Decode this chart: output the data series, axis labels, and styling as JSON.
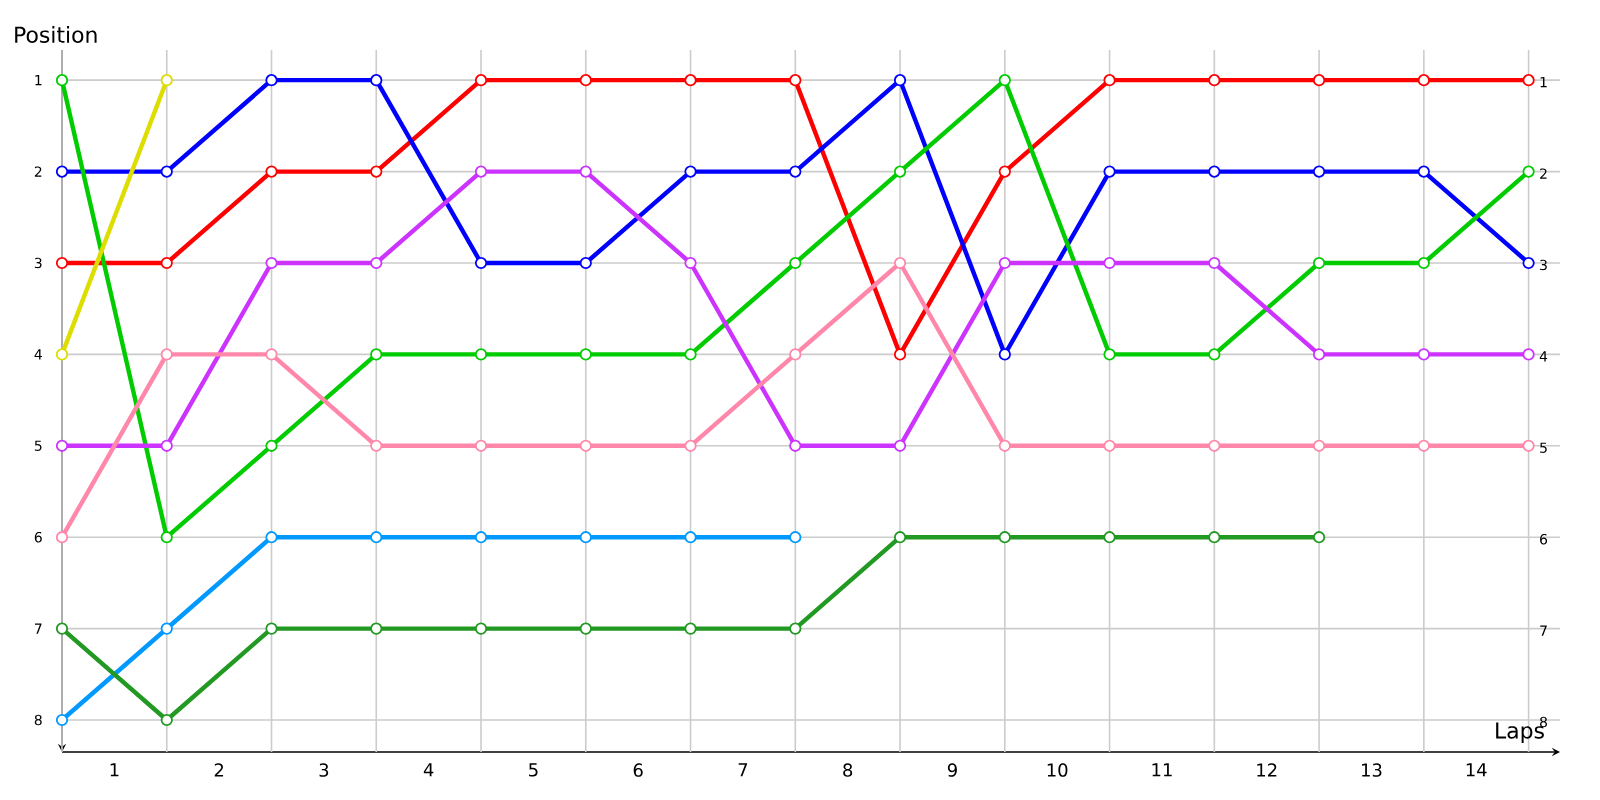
{
  "chart_data": {
    "type": "line",
    "xlabel": "Laps",
    "ylabel": "Position",
    "x": [
      0,
      1,
      2,
      3,
      4,
      5,
      6,
      7,
      8,
      9,
      10,
      11,
      12,
      13,
      14
    ],
    "series": [
      {
        "color": "#ff0000",
        "values": [
          3,
          3,
          2,
          2,
          1,
          1,
          1,
          1,
          4,
          2,
          1,
          1,
          1,
          1,
          1
        ]
      },
      {
        "color": "#0000ff",
        "values": [
          2,
          2,
          1,
          1,
          3,
          3,
          2,
          2,
          1,
          4,
          2,
          2,
          2,
          2,
          3
        ]
      },
      {
        "color": "#00cc00",
        "values": [
          1,
          6,
          5,
          4,
          4,
          4,
          4,
          3,
          2,
          1,
          4,
          4,
          3,
          3,
          2
        ]
      },
      {
        "color": "#dddd00",
        "values": [
          4,
          1,
          null,
          null,
          null,
          null,
          null,
          null,
          null,
          null,
          null,
          null,
          null,
          null,
          null
        ]
      },
      {
        "color": "#cc33ff",
        "values": [
          5,
          5,
          3,
          3,
          2,
          2,
          3,
          5,
          5,
          3,
          3,
          3,
          4,
          4,
          4
        ]
      },
      {
        "color": "#ff88aa",
        "values": [
          6,
          4,
          4,
          5,
          5,
          5,
          5,
          4,
          3,
          5,
          5,
          5,
          5,
          5,
          5
        ]
      },
      {
        "color": "#0099ff",
        "values": [
          8,
          7,
          6,
          6,
          6,
          6,
          6,
          6,
          null,
          null,
          null,
          null,
          null,
          null,
          null
        ]
      },
      {
        "color": "#229922",
        "values": [
          7,
          8,
          7,
          7,
          7,
          7,
          7,
          7,
          6,
          6,
          6,
          6,
          6,
          null,
          null
        ]
      }
    ],
    "xlim": [
      0,
      14.3
    ],
    "xticks": [
      {
        "value": 0,
        "label": null
      },
      {
        "value": 1,
        "label": null
      },
      {
        "value": 2,
        "label": null
      },
      {
        "value": 3,
        "label": null
      },
      {
        "value": 4,
        "label": null
      },
      {
        "value": 5,
        "label": null
      },
      {
        "value": 6,
        "label": null
      },
      {
        "value": 7,
        "label": null
      },
      {
        "value": 8,
        "label": null
      },
      {
        "value": 9,
        "label": null
      },
      {
        "value": 10,
        "label": null
      },
      {
        "value": 11,
        "label": null
      },
      {
        "value": 12,
        "label": null
      },
      {
        "value": 13,
        "label": null
      },
      {
        "value": 14,
        "label": null
      },
      {
        "value": 0.5,
        "label": "1"
      },
      {
        "value": 1.5,
        "label": "2"
      },
      {
        "value": 2.5,
        "label": "3"
      },
      {
        "value": 3.5,
        "label": "4"
      },
      {
        "value": 4.5,
        "label": "5"
      },
      {
        "value": 5.5,
        "label": "6"
      },
      {
        "value": 6.5,
        "label": "7"
      },
      {
        "value": 7.5,
        "label": "8"
      },
      {
        "value": 8.5,
        "label": "9"
      },
      {
        "value": 9.5,
        "label": "10"
      },
      {
        "value": 10.5,
        "label": "11"
      },
      {
        "value": 11.5,
        "label": "12"
      },
      {
        "value": 12.5,
        "label": "13"
      },
      {
        "value": 13.5,
        "label": "14"
      }
    ],
    "ylim": [
      8.35,
      0.67
    ],
    "yticks": [
      1,
      2,
      3,
      4,
      5,
      6,
      7,
      8
    ],
    "y2lim": [
      8.35,
      0.67
    ],
    "y2ticks": [
      1,
      2,
      3,
      4,
      5,
      6,
      7,
      8
    ],
    "grid": true,
    "marker": "circle",
    "line_style": "solid"
  }
}
